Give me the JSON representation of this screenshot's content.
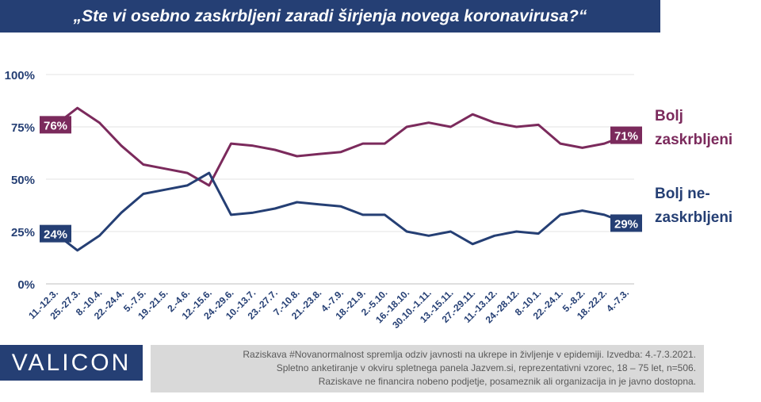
{
  "title": "„Ste vi osebno zaskrbljeni zaradi širjenja novega koronavirusa?“",
  "colors": {
    "title_bg": "#253f74",
    "concerned": "#7b2a5c",
    "not_concerned": "#253f74",
    "footnote_bg": "#d9d9d9"
  },
  "chart_data": {
    "type": "line",
    "categories": [
      "11.-12.3.",
      "25.-27.3.",
      "8.-10.4.",
      "22.-24.4.",
      "5.-7.5.",
      "19.-21.5.",
      "2.-4.6.",
      "12.-15.6.",
      "24.-29.6.",
      "10.-13.7.",
      "23.-27.7.",
      "7.-10.8.",
      "21.-23.8.",
      "4.-7.9.",
      "18.-21.9.",
      "2.-5.10.",
      "16.-18.10.",
      "30.10.-1.11.",
      "13.-15.11.",
      "27.-29.11.",
      "11.-13.12.",
      "24.-28.12.",
      "8.-10.1.",
      "22.-24.1.",
      "5.-8.2.",
      "18.-22.2.",
      "4.-7.3."
    ],
    "series": [
      {
        "name": "Bolj zaskrbljeni",
        "values": [
          76,
          84,
          77,
          66,
          57,
          55,
          53,
          47,
          67,
          66,
          64,
          61,
          62,
          63,
          67,
          67,
          75,
          77,
          75,
          81,
          77,
          75,
          76,
          67,
          65,
          67,
          71
        ]
      },
      {
        "name": "Bolj ne-zaskrbljeni",
        "values": [
          24,
          16,
          23,
          34,
          43,
          45,
          47,
          53,
          33,
          34,
          36,
          39,
          38,
          37,
          33,
          33,
          25,
          23,
          25,
          19,
          23,
          25,
          24,
          33,
          35,
          33,
          29
        ]
      }
    ],
    "y_ticks": [
      "0%",
      "25%",
      "50%",
      "75%",
      "100%"
    ],
    "ylim": [
      0,
      100
    ],
    "grid": true,
    "data_labels": {
      "concerned_first": "76%",
      "concerned_last": "71%",
      "not_concerned_first": "24%",
      "not_concerned_last": "29%"
    },
    "legend": {
      "concerned_line1": "Bolj",
      "concerned_line2": "zaskrbljeni",
      "not_concerned_line1": "Bolj ne-",
      "not_concerned_line2": "zaskrbljeni"
    }
  },
  "logo": "VALICON",
  "footnote": {
    "line1": "Raziskava #Novanormalnost spremlja odziv javnosti na ukrepe in življenje v epidemiji. Izvedba: 4.-7.3.2021.",
    "line2": "Spletno anketiranje v okviru spletnega panela Jazvem.si, reprezentativni vzorec, 18 – 75 let, n=506.",
    "line3": "Raziskave ne financira nobeno podjetje, posameznik ali organizacija in je javno dostopna."
  }
}
